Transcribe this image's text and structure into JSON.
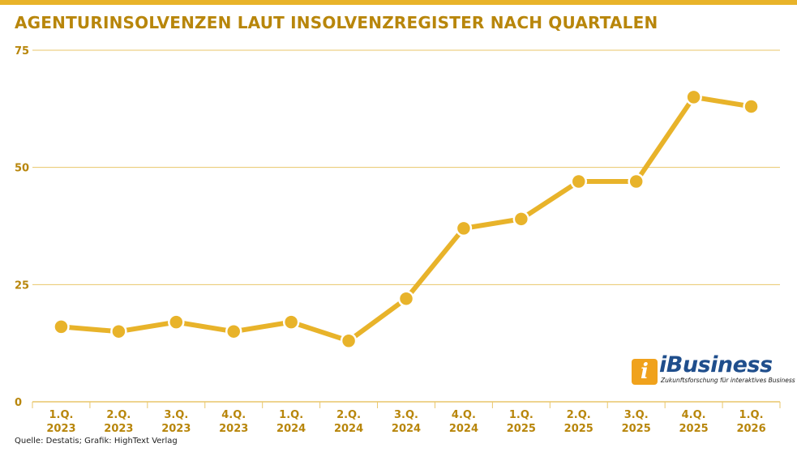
{
  "title": "AGENTURINSOLVENZEN LAUT INSOLVENZREGISTER NACH QUARTALEN",
  "source": "Quelle: Destatis; Grafik: HighText Verlag",
  "logo": {
    "name": "iBusiness",
    "tagline": "Zukunftsforschung für interaktives Business"
  },
  "colors": {
    "accent": "#e8b32a",
    "line": "#e8b32a",
    "title": "#b8860b",
    "grid": "#e9c66a",
    "axis_text": "#b8860b",
    "logo_blue": "#1f4e8c",
    "logo_orange": "#f0a21c"
  },
  "chart_data": {
    "type": "line",
    "title": "AGENTURINSOLVENZEN LAUT INSOLVENZREGISTER NACH QUARTALEN",
    "xlabel": "",
    "ylabel": "",
    "categories": [
      [
        "1.Q.",
        "2023"
      ],
      [
        "2.Q.",
        "2023"
      ],
      [
        "3.Q.",
        "2023"
      ],
      [
        "4.Q.",
        "2023"
      ],
      [
        "1.Q.",
        "2024"
      ],
      [
        "2.Q.",
        "2024"
      ],
      [
        "3.Q.",
        "2024"
      ],
      [
        "4.Q.",
        "2024"
      ],
      [
        "1.Q.",
        "2025"
      ],
      [
        "2.Q.",
        "2025"
      ],
      [
        "3.Q.",
        "2025"
      ],
      [
        "4.Q.",
        "2025"
      ],
      [
        "1.Q.",
        "2026"
      ]
    ],
    "series": [
      {
        "values": [
          16,
          15,
          17,
          15,
          17,
          13,
          22,
          37,
          39,
          47,
          47,
          65,
          63
        ]
      }
    ],
    "ylim": [
      0,
      75
    ],
    "yticks": [
      0,
      25,
      50,
      75
    ],
    "grid": true,
    "legend": "none"
  }
}
